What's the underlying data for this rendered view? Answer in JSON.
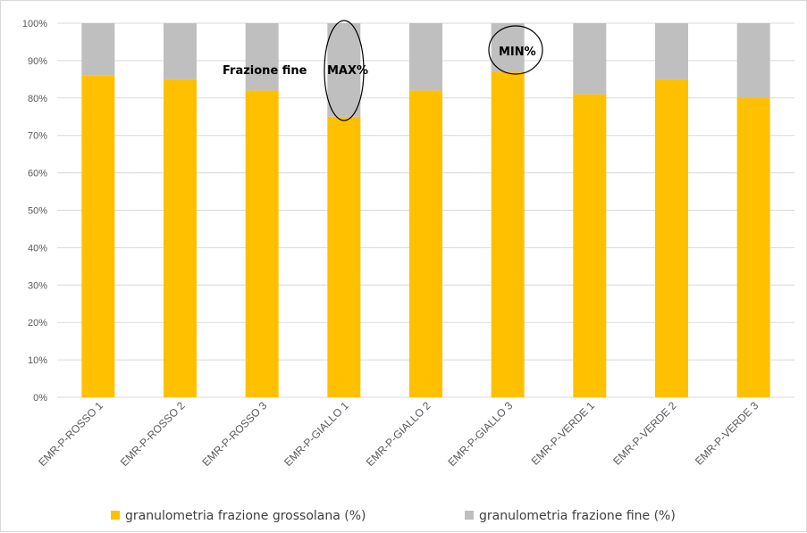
{
  "chart_data": {
    "type": "bar",
    "stacked": true,
    "percent_stacked": true,
    "categories": [
      "EMR-P-ROSSO 1",
      "EMR-P-ROSSO 2",
      "EMR-P-ROSSO 3",
      "EMR-P-GIALLO 1",
      "EMR-P-GIALLO 2",
      "EMR-P-GIALLO 3",
      "EMR-P-VERDE 1",
      "EMR-P-VERDE 2",
      "EMR-P-VERDE 3"
    ],
    "series": [
      {
        "name": "granulometria frazione grossolana (%)",
        "color": "#ffc000",
        "values": [
          86,
          85,
          82,
          75,
          82,
          87,
          81,
          85,
          80
        ]
      },
      {
        "name": "granulometria frazione fine (%)",
        "color": "#bfbfbf",
        "values": [
          14,
          15,
          18,
          25,
          18,
          13,
          19,
          15,
          20
        ]
      }
    ],
    "ylim": [
      0,
      100
    ],
    "yticks": [
      "0%",
      "10%",
      "20%",
      "30%",
      "40%",
      "50%",
      "60%",
      "70%",
      "80%",
      "90%",
      "100%"
    ],
    "grid": true,
    "legend_position": "bottom",
    "annotations": {
      "frazione_fine": "Frazione fine",
      "max": "MAX%",
      "min": "MIN%"
    }
  }
}
